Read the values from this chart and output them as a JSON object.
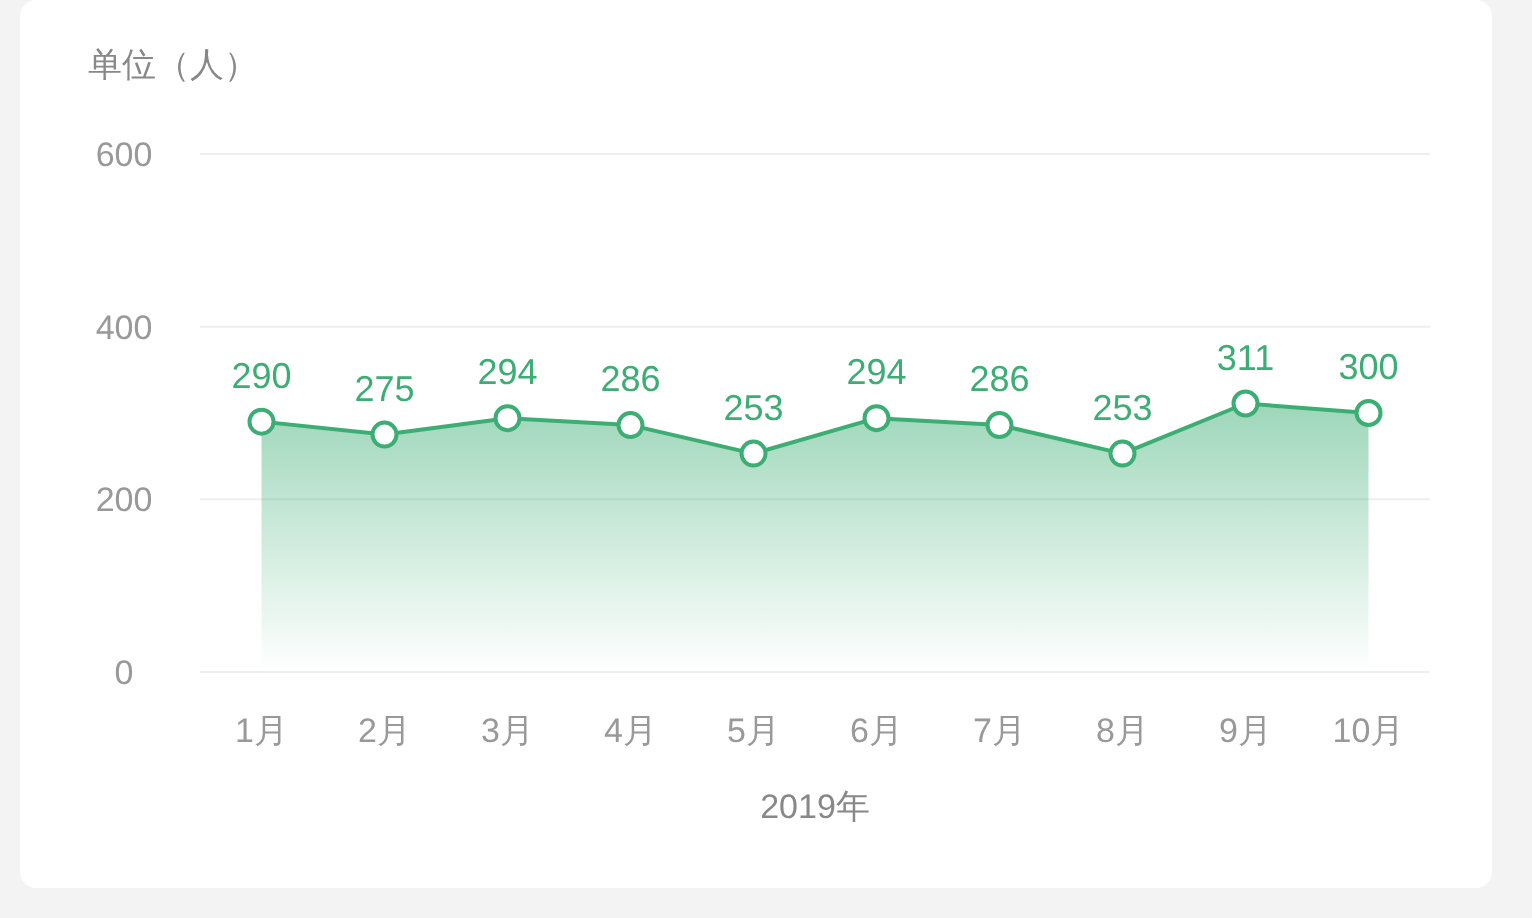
{
  "chart_data": {
    "type": "area",
    "ylabel": "单位（人）",
    "xlabel": "2019年",
    "categories": [
      "1月",
      "2月",
      "3月",
      "4月",
      "5月",
      "6月",
      "7月",
      "8月",
      "9月",
      "10月"
    ],
    "series": [
      {
        "color": "#3cae74",
        "values": [
          290,
          275,
          294,
          286,
          253,
          294,
          286,
          253,
          311,
          300
        ]
      }
    ],
    "data_labels": true,
    "ylim": [
      0,
      600
    ],
    "yticks": [
      0,
      200,
      400,
      600
    ],
    "grid": "y",
    "marker": "circle",
    "line_style": "solid"
  }
}
